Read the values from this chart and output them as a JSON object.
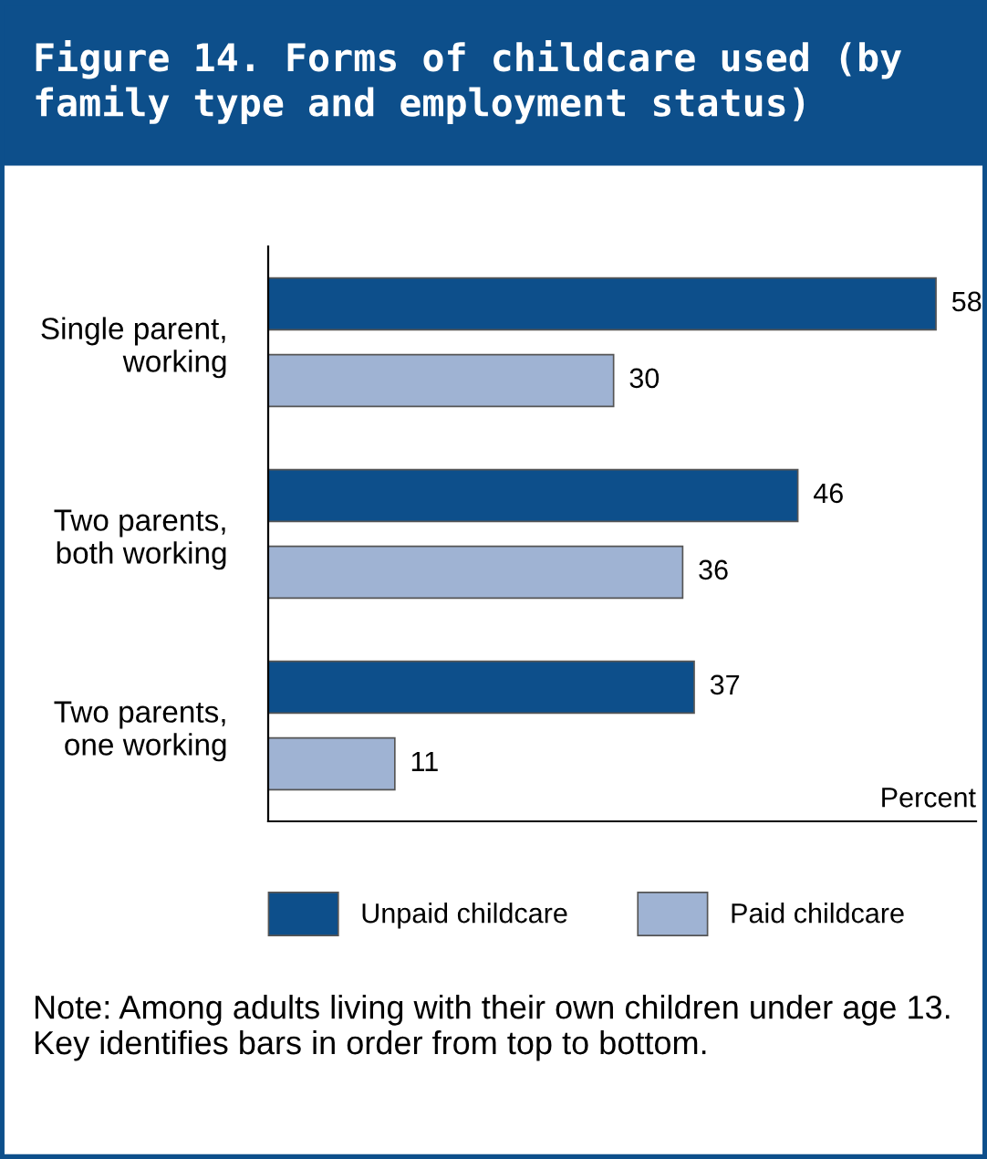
{
  "chart_data": {
    "type": "bar",
    "orientation": "horizontal",
    "title": "Figure 14. Forms of childcare used (by family type and employment status)",
    "categories": [
      "Single parent,\nworking",
      "Two parents,\nboth working",
      "Two parents,\none working"
    ],
    "series": [
      {
        "name": "Unpaid childcare",
        "color": "#0d4f8b",
        "values": [
          58,
          46,
          37
        ]
      },
      {
        "name": "Paid childcare",
        "color": "#9fb3d3",
        "values": [
          30,
          36,
          11
        ]
      }
    ],
    "xlabel": "Percent",
    "data_labels": true,
    "legend": "bottom",
    "grid": false,
    "annotations": [
      "Note: Among adults living with their own children under age 13. Key identifies bars in order from top to bottom."
    ]
  }
}
